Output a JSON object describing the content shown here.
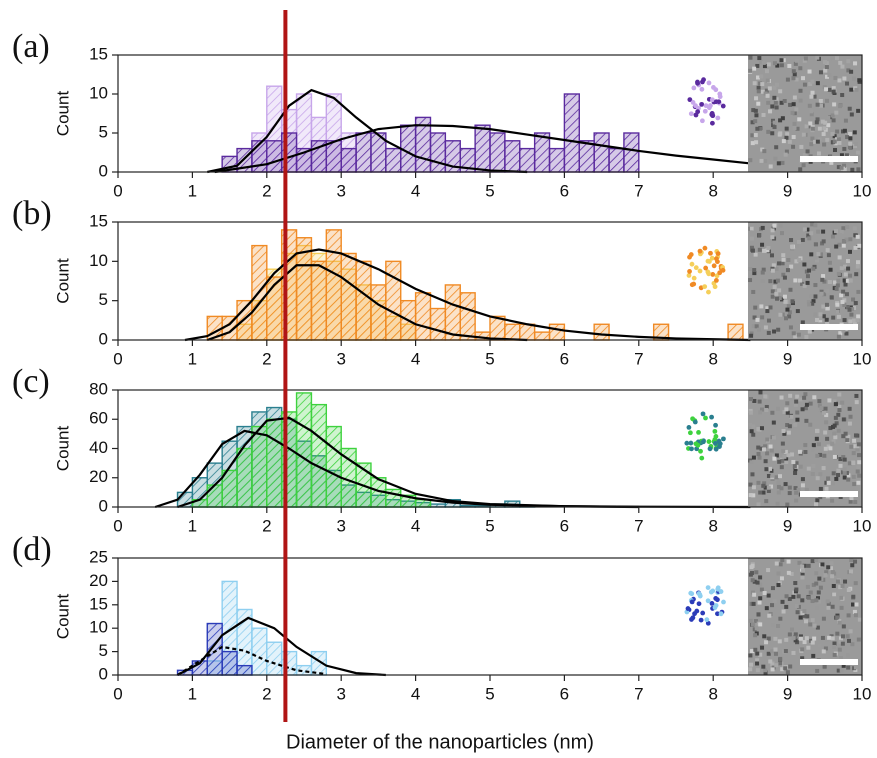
{
  "chart_data": [
    {
      "type": "histogram",
      "label": "(a)",
      "y_label": "Count",
      "xlim": [
        0,
        10
      ],
      "xticks": [
        0,
        1,
        2,
        3,
        4,
        5,
        6,
        7,
        8,
        9,
        10
      ],
      "ylim": [
        0,
        15
      ],
      "yticks": [
        0,
        5,
        10,
        15
      ],
      "series": [
        {
          "color": "#c7a6ea",
          "bins": [
            1.8,
            2,
            2.2,
            2.4,
            2.6,
            2.8,
            3,
            3.2
          ],
          "values": [
            5,
            11,
            8,
            10,
            7,
            10,
            5
          ]
        },
        {
          "color": "#5a2a9e",
          "bins": [
            1.4,
            1.6,
            1.8,
            2,
            2.2,
            2.4,
            2.6,
            2.8,
            3,
            3.2,
            3.4,
            3.6,
            3.8,
            4,
            4.2,
            4.4,
            4.6,
            4.8,
            5,
            5.2,
            5.4,
            5.6,
            5.8,
            6,
            6.2,
            6.4,
            6.6,
            6.8,
            7
          ],
          "values": [
            2,
            3,
            4,
            4,
            5,
            3,
            4,
            4,
            3,
            5,
            5,
            3,
            6,
            7,
            5,
            4,
            3,
            6,
            5,
            4,
            3,
            5,
            3,
            10,
            4,
            5,
            3,
            5
          ]
        }
      ],
      "fits": [
        {
          "color": "#000000",
          "dash": false,
          "x": [
            1.2,
            1.6,
            2.0,
            2.3,
            2.6,
            2.9,
            3.2,
            3.6,
            4.0,
            4.5,
            5.0,
            5.5
          ],
          "y": [
            0,
            0.8,
            4.5,
            8.5,
            10.5,
            9.5,
            7,
            4,
            2,
            0.7,
            0.2,
            0
          ]
        },
        {
          "color": "#000000",
          "dash": false,
          "x": [
            1.3,
            2,
            2.5,
            3,
            3.5,
            4,
            4.5,
            5,
            5.5,
            6,
            6.5,
            7,
            7.5,
            8,
            8.5
          ],
          "y": [
            0,
            1,
            2.5,
            4.2,
            5.5,
            6,
            5.9,
            5.5,
            4.8,
            4.1,
            3.4,
            2.7,
            2.1,
            1.6,
            1.1
          ]
        }
      ]
    },
    {
      "type": "histogram",
      "label": "(b)",
      "y_label": "Count",
      "xlim": [
        0,
        10
      ],
      "xticks": [
        0,
        1,
        2,
        3,
        4,
        5,
        6,
        7,
        8,
        9,
        10
      ],
      "ylim": [
        0,
        15
      ],
      "yticks": [
        0,
        5,
        10,
        15
      ],
      "series": [
        {
          "color": "#f5cf5a",
          "bins": [
            1.6,
            1.8,
            2,
            2.2,
            2.4,
            2.6,
            2.8,
            3,
            3.2,
            3.4,
            3.6,
            3.8,
            4
          ],
          "values": [
            2,
            5,
            9,
            11,
            12,
            11,
            10,
            9,
            7,
            5,
            3,
            2
          ]
        },
        {
          "color": "#f08a24",
          "bins": [
            1.2,
            1.4,
            1.6,
            1.8,
            2,
            2.2,
            2.4,
            2.6,
            2.8,
            3,
            3.2,
            3.4,
            3.6,
            3.8,
            4,
            4.2,
            4.4,
            4.6,
            4.8,
            5,
            5.2,
            5.4,
            5.6,
            5.8,
            6,
            6.2,
            6.4,
            6.6,
            6.8,
            7,
            7.2,
            7.4,
            7.6,
            7.8,
            8,
            8.2,
            8.4
          ],
          "values": [
            3,
            3,
            5,
            12,
            8,
            14,
            13,
            10,
            14,
            11,
            10,
            7,
            10,
            5,
            6,
            4,
            7,
            6,
            1,
            3,
            2,
            2,
            1,
            2,
            0,
            0,
            2,
            0,
            0,
            0,
            2,
            0,
            0,
            0,
            0,
            2
          ]
        }
      ],
      "fits": [
        {
          "color": "#000000",
          "dash": false,
          "x": [
            0.9,
            1.2,
            1.5,
            1.8,
            2.1,
            2.4,
            2.7,
            3,
            3.5,
            4,
            4.5,
            5,
            5.5,
            6,
            6.5,
            7,
            7.5,
            8,
            8.5
          ],
          "y": [
            0,
            0.5,
            2,
            5,
            8.5,
            11,
            11.5,
            11,
            9,
            6.5,
            4.5,
            3,
            2,
            1.2,
            0.7,
            0.4,
            0.2,
            0.1,
            0
          ]
        },
        {
          "color": "#000000",
          "dash": false,
          "x": [
            1.2,
            1.5,
            1.8,
            2.1,
            2.4,
            2.7,
            3,
            3.5,
            4,
            4.5,
            5,
            5.5
          ],
          "y": [
            0,
            1,
            3.5,
            7,
            9.5,
            9.5,
            8,
            4.5,
            2,
            0.7,
            0.2,
            0
          ]
        }
      ]
    },
    {
      "type": "histogram",
      "label": "(c)",
      "y_label": "Count",
      "xlim": [
        0,
        10
      ],
      "xticks": [
        0,
        1,
        2,
        3,
        4,
        5,
        6,
        7,
        8,
        9,
        10
      ],
      "ylim": [
        0,
        80
      ],
      "yticks": [
        0,
        20,
        40,
        60,
        80
      ],
      "series": [
        {
          "color": "#2a7f8f",
          "bins": [
            0.8,
            1,
            1.2,
            1.4,
            1.6,
            1.8,
            2,
            2.2,
            2.4,
            2.6,
            2.8,
            3,
            3.2,
            3.4,
            3.6,
            3.8,
            4,
            4.2,
            4.4,
            4.6,
            4.8,
            5,
            5.2,
            5.4,
            5.6
          ],
          "values": [
            10,
            20,
            30,
            45,
            55,
            65,
            68,
            60,
            45,
            35,
            25,
            15,
            10,
            8,
            5,
            4,
            3,
            2,
            5,
            1,
            1,
            2,
            4,
            1
          ]
        },
        {
          "color": "#3ed23e",
          "bins": [
            1,
            1.2,
            1.4,
            1.6,
            1.8,
            2,
            2.2,
            2.4,
            2.6,
            2.8,
            3,
            3.2,
            3.4,
            3.6,
            3.8,
            4,
            4.2
          ],
          "values": [
            5,
            15,
            25,
            40,
            55,
            60,
            65,
            78,
            70,
            55,
            40,
            30,
            20,
            12,
            8,
            5
          ]
        }
      ],
      "fits": [
        {
          "color": "#000000",
          "dash": false,
          "x": [
            0.5,
            0.8,
            1.1,
            1.4,
            1.7,
            2.0,
            2.3,
            2.6,
            3,
            3.5,
            4,
            4.5,
            5,
            6,
            7,
            8.5
          ],
          "y": [
            0,
            5,
            22,
            43,
            52,
            49,
            40,
            30,
            20,
            11,
            6,
            3,
            1.5,
            0.5,
            0.2,
            0
          ]
        },
        {
          "color": "#000000",
          "dash": false,
          "x": [
            0.8,
            1.1,
            1.4,
            1.7,
            2.0,
            2.3,
            2.6,
            3,
            3.5,
            4,
            4.5,
            5,
            6,
            7
          ],
          "y": [
            0,
            5,
            20,
            42,
            59,
            61,
            52,
            36,
            19,
            9,
            4,
            2,
            0.5,
            0
          ]
        }
      ]
    },
    {
      "type": "histogram",
      "label": "(d)",
      "y_label": "Count",
      "xlim": [
        0,
        10
      ],
      "xticks": [
        0,
        1,
        2,
        3,
        4,
        5,
        6,
        7,
        8,
        9,
        10
      ],
      "ylim": [
        0,
        25
      ],
      "yticks": [
        0,
        5,
        10,
        15,
        20,
        25
      ],
      "series": [
        {
          "color": "#8ecff0",
          "bins": [
            1.2,
            1.4,
            1.6,
            1.8,
            2,
            2.2,
            2.4,
            2.6,
            2.8
          ],
          "values": [
            3,
            20,
            14,
            10,
            7,
            5,
            2,
            5
          ]
        },
        {
          "color": "#2b3bb8",
          "bins": [
            0.8,
            1,
            1.2,
            1.4,
            1.6,
            1.8
          ],
          "values": [
            1,
            3,
            11,
            5,
            2
          ]
        }
      ],
      "fits": [
        {
          "color": "#000000",
          "dash": false,
          "x": [
            0.8,
            1.1,
            1.4,
            1.75,
            2.1,
            2.4,
            2.8,
            3.2,
            3.6
          ],
          "y": [
            0,
            2.5,
            8.5,
            12.2,
            10,
            6,
            2,
            0.4,
            0
          ]
        },
        {
          "color": "#000000",
          "dash": true,
          "x": [
            0.8,
            1.1,
            1.4,
            1.7,
            2.0,
            2.4,
            2.8
          ],
          "y": [
            0,
            3,
            6,
            5.2,
            3,
            1,
            0.2
          ]
        }
      ]
    }
  ],
  "x_label": "Diameter of the nanoparticles (nm)",
  "reference_line": {
    "x": 2.25,
    "color": "#b01515"
  }
}
